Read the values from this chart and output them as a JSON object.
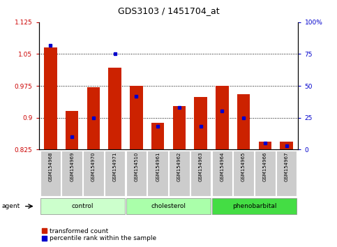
{
  "title": "GDS3103 / 1451704_at",
  "samples": [
    "GSM154968",
    "GSM154969",
    "GSM154970",
    "GSM154971",
    "GSM154510",
    "GSM154961",
    "GSM154962",
    "GSM154963",
    "GSM154964",
    "GSM154965",
    "GSM154966",
    "GSM154967"
  ],
  "red_values": [
    1.065,
    0.915,
    0.972,
    1.018,
    0.975,
    0.888,
    0.928,
    0.948,
    0.975,
    0.955,
    0.843,
    0.843
  ],
  "blue_percentiles": [
    82,
    10,
    25,
    75,
    42,
    18,
    33,
    18,
    30,
    25,
    5,
    3
  ],
  "ylim_left": [
    0.825,
    1.125
  ],
  "ylim_right": [
    0,
    100
  ],
  "yticks_left": [
    0.825,
    0.9,
    0.975,
    1.05,
    1.125
  ],
  "yticks_right": [
    0,
    25,
    50,
    75,
    100
  ],
  "ytick_labels_left": [
    "0.825",
    "0.9",
    "0.975",
    "1.05",
    "1.125"
  ],
  "ytick_labels_right": [
    "0",
    "25",
    "50",
    "75",
    "100%"
  ],
  "hlines": [
    1.05,
    0.975,
    0.9
  ],
  "groups": [
    {
      "label": "control",
      "indices": [
        0,
        1,
        2,
        3
      ]
    },
    {
      "label": "cholesterol",
      "indices": [
        4,
        5,
        6,
        7
      ]
    },
    {
      "label": "phenobarbital",
      "indices": [
        8,
        9,
        10,
        11
      ]
    }
  ],
  "group_colors": [
    "#ccffcc",
    "#aaffaa",
    "#44dd44"
  ],
  "agent_label": "agent",
  "bar_color_red": "#cc2200",
  "bar_color_blue": "#0000cc",
  "bar_width": 0.6,
  "tick_bg_color": "#cccccc",
  "baseline": 0.825,
  "left_color": "#cc0000",
  "right_color": "#0000cc"
}
